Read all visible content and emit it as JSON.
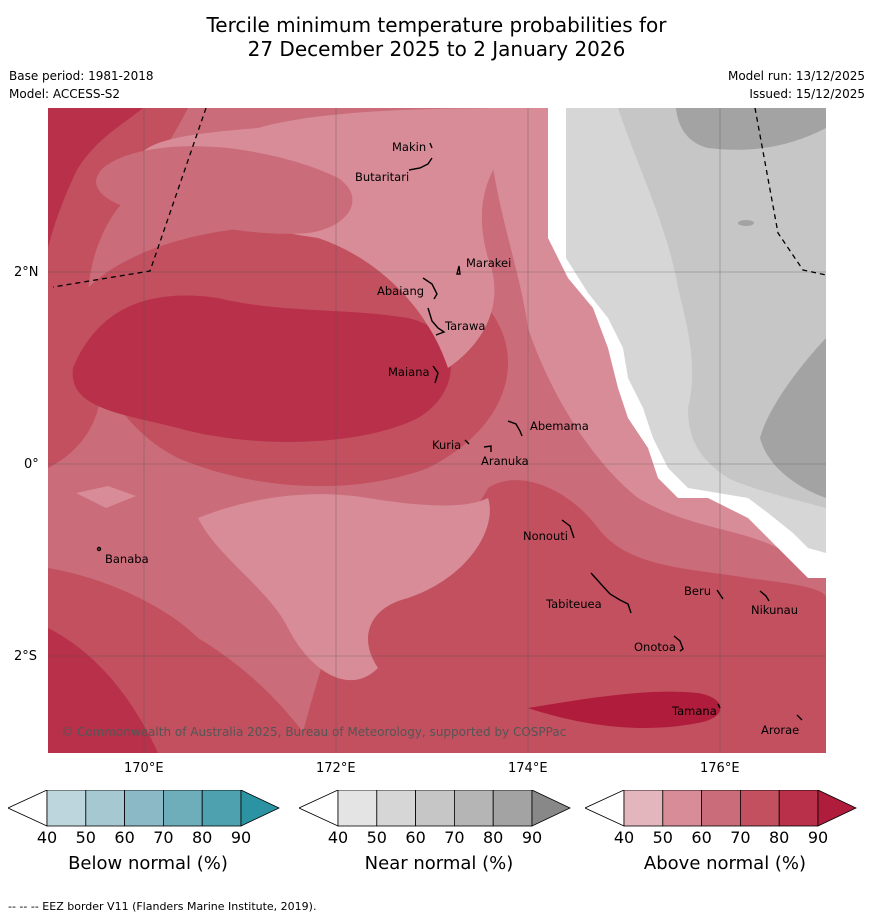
{
  "title": {
    "line1": "Tercile minimum temperature probabilities for",
    "line2": "27 December 2025 to 2 January 2026"
  },
  "meta": {
    "base_period": "Base period: 1981-2018",
    "model": "Model: ACCESS-S2",
    "model_run": "Model run: 13/12/2025",
    "issued": "Issued: 15/12/2025"
  },
  "axes": {
    "lon_labels": [
      "170°E",
      "172°E",
      "174°E",
      "176°E"
    ],
    "lat_labels": [
      "2°N",
      "0°",
      "2°S"
    ]
  },
  "places": {
    "makin": "Makin",
    "butaritari": "Butaritari",
    "marakei": "Marakei",
    "abaiang": "Abaiang",
    "tarawa": "Tarawa",
    "maiana": "Maiana",
    "abemama": "Abemama",
    "kuria": "Kuria",
    "aranuka": "Aranuka",
    "banaba": "Banaba",
    "nonouti": "Nonouti",
    "tabiteuea": "Tabiteuea",
    "beru": "Beru",
    "nikunau": "Nikunau",
    "onotoa": "Onotoa",
    "tamana": "Tamana",
    "arorae": "Arorae"
  },
  "copyright": "© Commonwealth of Australia 2025, Bureau of Meteorology, supported by COSPPac",
  "colorbars": [
    {
      "title": "Below normal (%)",
      "ticks": [
        "40",
        "50",
        "60",
        "70",
        "80",
        "90"
      ],
      "colors": [
        "#ffffff",
        "#bdd5dd",
        "#a6c8d0",
        "#8bbac6",
        "#6eaebb",
        "#4ea2b0",
        "#2c93a3"
      ]
    },
    {
      "title": "Near normal (%)",
      "ticks": [
        "40",
        "50",
        "60",
        "70",
        "80",
        "90"
      ],
      "colors": [
        "#ffffff",
        "#e4e4e4",
        "#d6d6d6",
        "#c6c6c6",
        "#b5b5b5",
        "#a3a3a3",
        "#888888"
      ]
    },
    {
      "title": "Above normal (%)",
      "ticks": [
        "40",
        "50",
        "60",
        "70",
        "80",
        "90"
      ],
      "colors": [
        "#ffffff",
        "#e3b6be",
        "#d78c97",
        "#ca6c79",
        "#c2505f",
        "#b8304a",
        "#b01d3c"
      ]
    }
  ],
  "footer": "--  --  -- EEZ border V11 (Flanders Marine Institute, 2019)."
}
